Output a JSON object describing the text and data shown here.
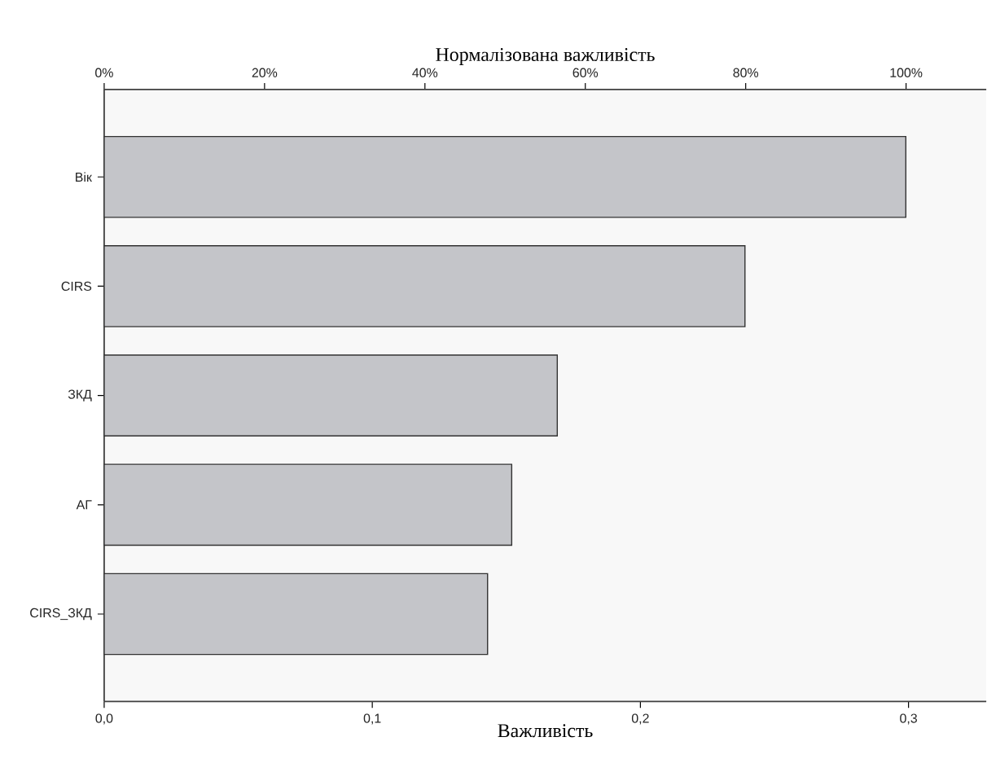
{
  "chart_data": {
    "type": "bar",
    "orientation": "horizontal",
    "x2label": "Нормалізована важливість",
    "xlabel": "Важливість",
    "categories": [
      "Вік",
      "CIRS",
      "ЗКД",
      "АГ",
      "CIRS_ЗКД"
    ],
    "values": [
      0.299,
      0.239,
      0.169,
      0.152,
      0.143
    ],
    "color": "#c4c5c9",
    "xlim": [
      0,
      0.329
    ],
    "xticks": [
      {
        "value": 0,
        "label": "0,0"
      },
      {
        "value": 0.1,
        "label": "0,1"
      },
      {
        "value": 0.2,
        "label": "0,2"
      },
      {
        "value": 0.3,
        "label": "0,3"
      }
    ],
    "x2lim": [
      0,
      110
    ],
    "x2ticks": [
      {
        "value": 0,
        "label": "0%"
      },
      {
        "value": 20,
        "label": "20%"
      },
      {
        "value": 40,
        "label": "40%"
      },
      {
        "value": 60,
        "label": "60%"
      },
      {
        "value": 80,
        "label": "80%"
      },
      {
        "value": 100,
        "label": "100%"
      }
    ]
  }
}
